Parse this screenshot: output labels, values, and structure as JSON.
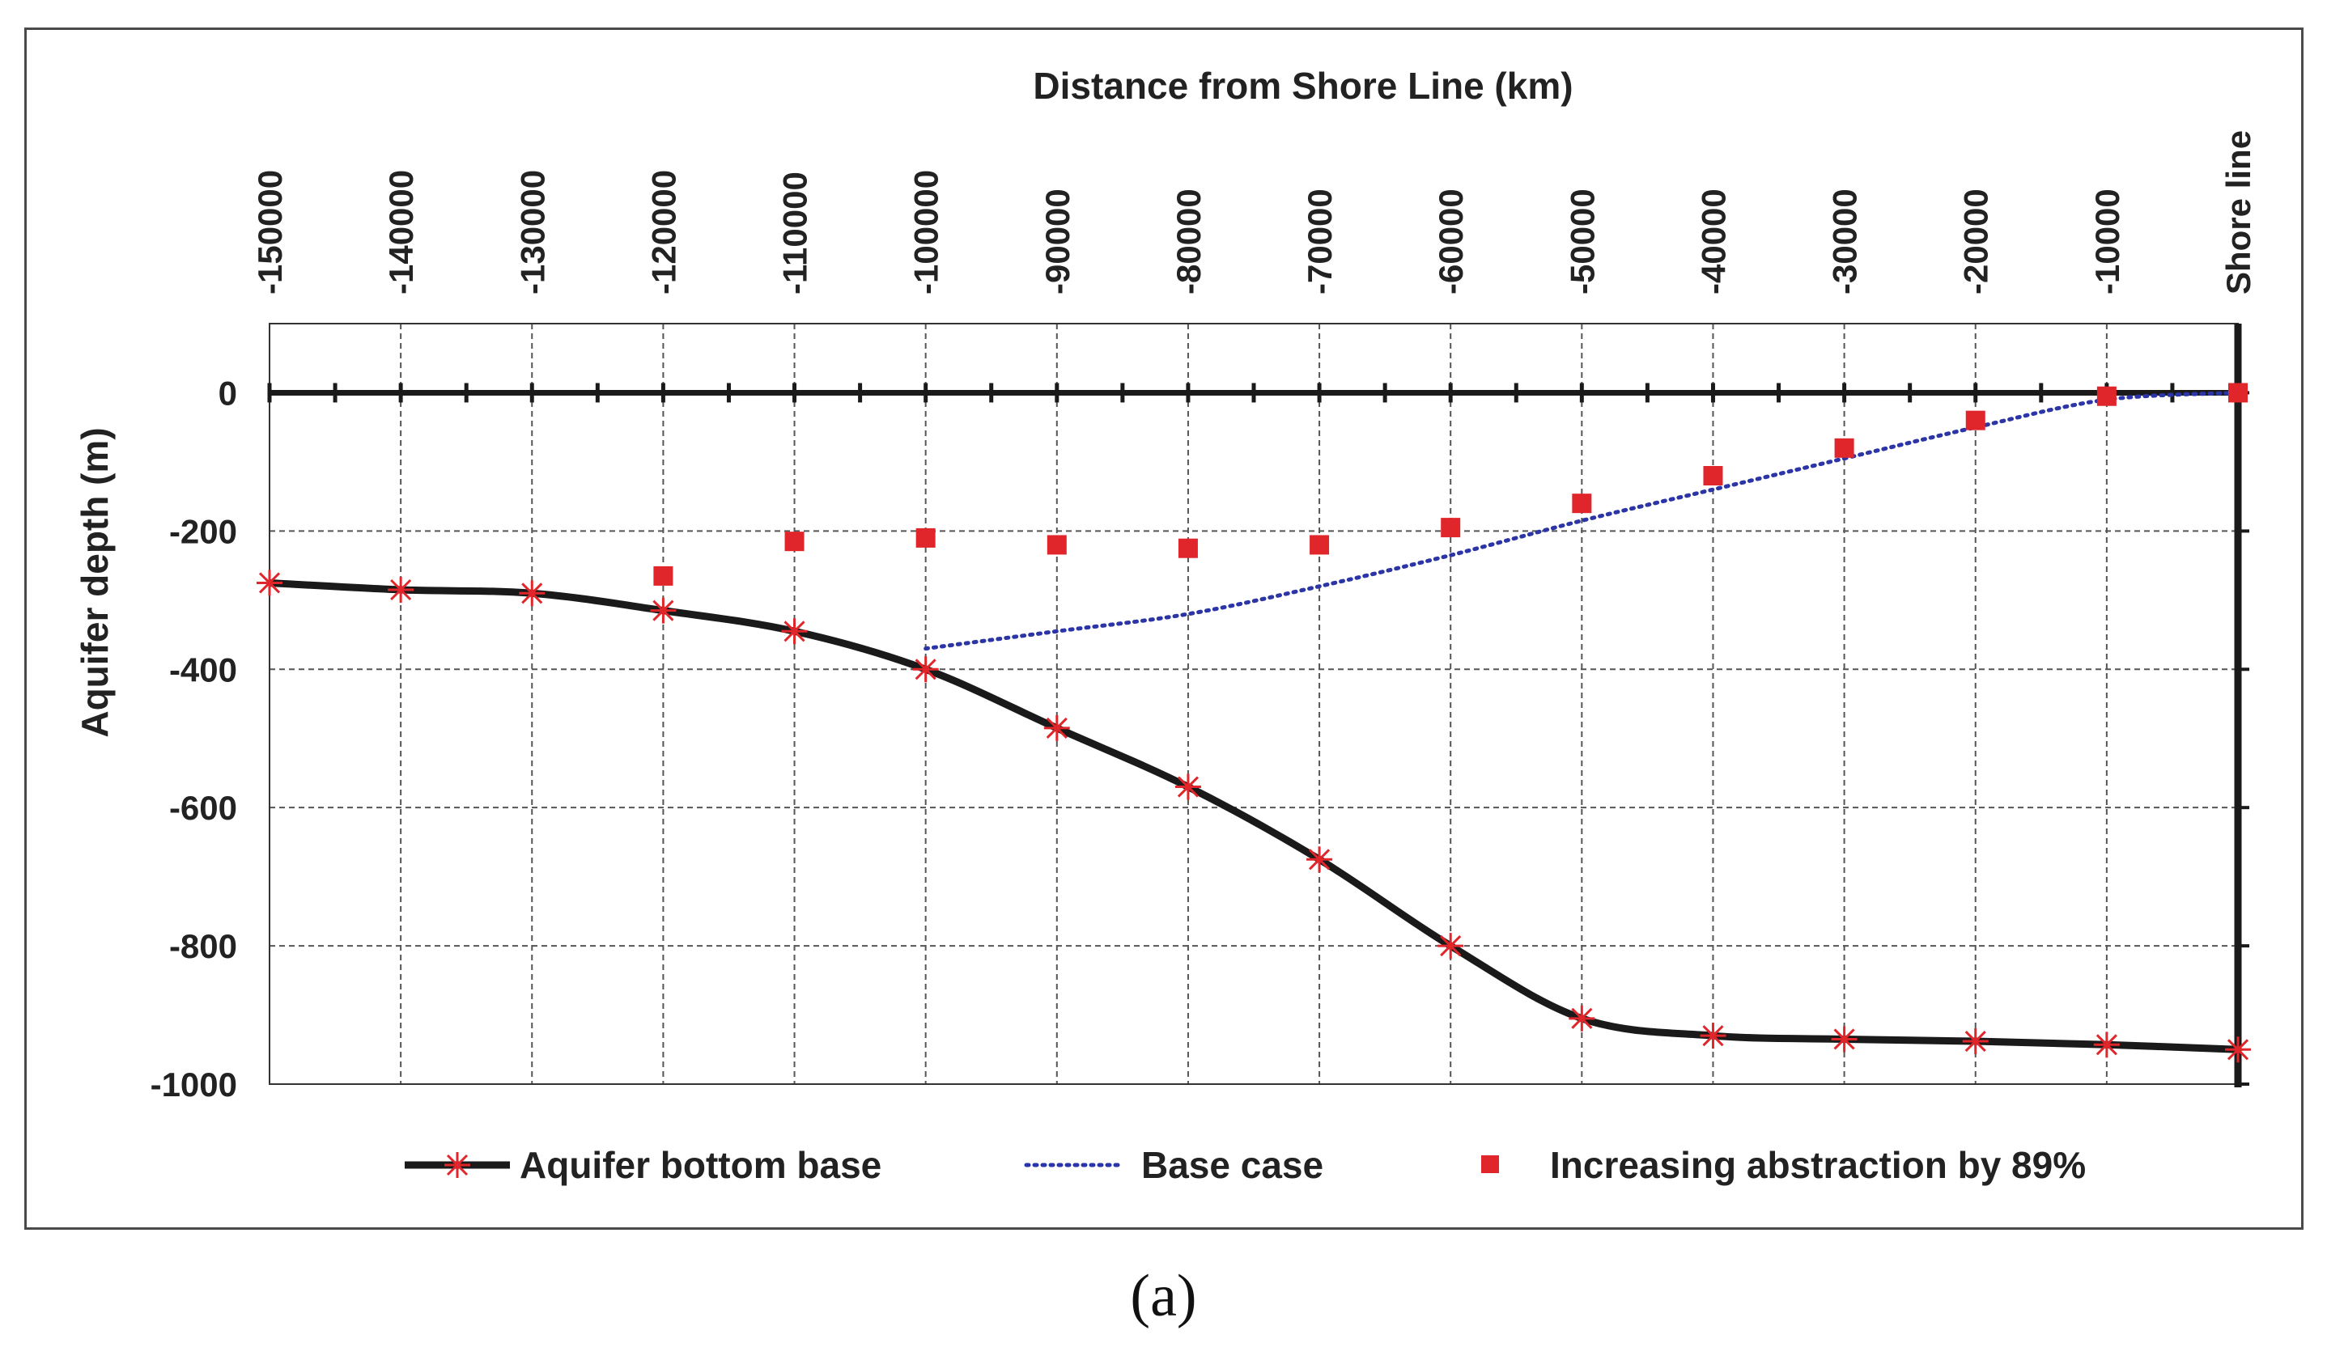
{
  "caption": "(a)",
  "chart_data": {
    "type": "line",
    "title": "Distance from Shore Line (km)",
    "xlabel": "Distance from Shore Line (km)",
    "ylabel": "Aquifer depth (m)",
    "xlim": [
      -150000,
      0
    ],
    "ylim": [
      -1000,
      100
    ],
    "x_axis_position": "top",
    "x_ticks": [
      -150000,
      -140000,
      -130000,
      -120000,
      -110000,
      -100000,
      -90000,
      -80000,
      -70000,
      -60000,
      -50000,
      -40000,
      -30000,
      -20000,
      -10000,
      0
    ],
    "x_tick_labels": [
      "-150000",
      "-140000",
      "-130000",
      "-120000",
      "-110000",
      "-100000",
      "-90000",
      "-80000",
      "-70000",
      "-60000",
      "-50000",
      "-40000",
      "-30000",
      "-20000",
      "-10000",
      "Shore line"
    ],
    "y_ticks": [
      0,
      -200,
      -400,
      -600,
      -800,
      -1000
    ],
    "y_tick_labels": [
      "0",
      "-200",
      "-400",
      "-600",
      "-800",
      "-1000"
    ],
    "grid": true,
    "legend_position": "bottom",
    "series": [
      {
        "name": "Aquifer bottom base",
        "style": "thick-solid-with-star-markers",
        "color": "#1a1a1a",
        "marker_color": "#e0262b",
        "x": [
          -150000,
          -140000,
          -130000,
          -120000,
          -110000,
          -100000,
          -90000,
          -80000,
          -70000,
          -60000,
          -50000,
          -40000,
          -30000,
          -20000,
          -10000,
          0
        ],
        "y": [
          -275,
          -285,
          -290,
          -315,
          -345,
          -400,
          -485,
          -570,
          -675,
          -800,
          -905,
          -930,
          -935,
          -938,
          -943,
          -950
        ]
      },
      {
        "name": "Base case",
        "style": "dotted",
        "color": "#2b35a6",
        "x": [
          -100000,
          -90000,
          -80000,
          -70000,
          -60000,
          -50000,
          -40000,
          -30000,
          -20000,
          -10000,
          0
        ],
        "y": [
          -370,
          -345,
          -320,
          -280,
          -235,
          -185,
          -140,
          -95,
          -50,
          -10,
          0
        ]
      },
      {
        "name": "Increasing abstraction by 89%",
        "style": "square-markers",
        "color": "#e0262b",
        "x": [
          -120000,
          -110000,
          -100000,
          -90000,
          -80000,
          -70000,
          -60000,
          -50000,
          -40000,
          -30000,
          -20000,
          -10000,
          0
        ],
        "y": [
          -265,
          -215,
          -210,
          -220,
          -225,
          -220,
          -195,
          -160,
          -120,
          -80,
          -40,
          -5,
          0
        ]
      }
    ]
  }
}
